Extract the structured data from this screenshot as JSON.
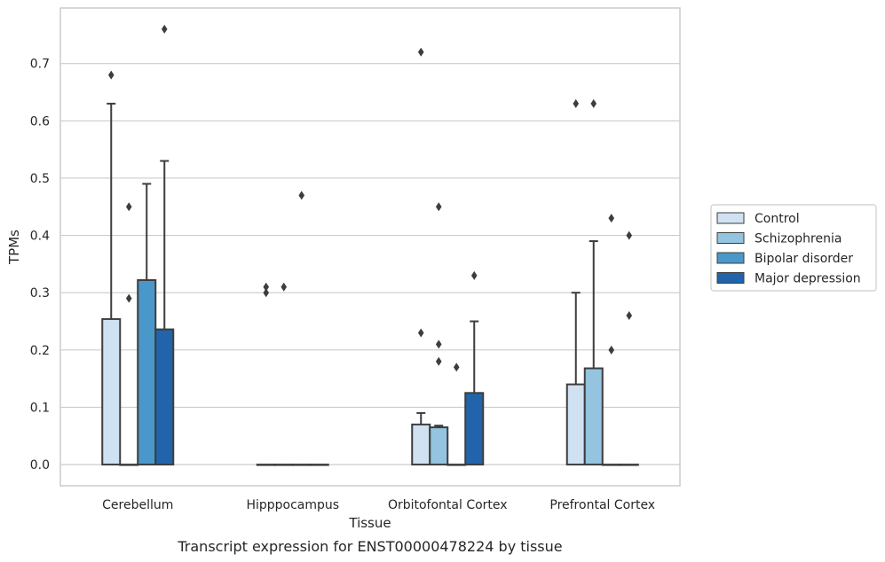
{
  "chart_data": {
    "type": "bar",
    "xlabel": "Tissue",
    "ylabel": "TPMs",
    "caption": "Transcript expression for ENST00000478224 by tissue",
    "categories": [
      "Cerebellum",
      "Hipppocampus",
      "Orbitofontal Cortex",
      "Prefrontal Cortex"
    ],
    "y_ticks": [
      "0.0",
      "0.1",
      "0.2",
      "0.3",
      "0.4",
      "0.5",
      "0.6",
      "0.7"
    ],
    "ylim": [
      -0.037,
      0.797
    ],
    "grid": true,
    "legend_position": "right",
    "series": [
      {
        "name": "Control",
        "color": "#d0e1f2",
        "values": [
          0.254,
          0.0,
          0.07,
          0.14
        ],
        "whisker_high": [
          0.63,
          null,
          0.09,
          0.3
        ],
        "outliers": [
          [
            0.68
          ],
          [
            0.3,
            0.31
          ],
          [
            0.23,
            0.72
          ],
          [
            0.63
          ]
        ]
      },
      {
        "name": "Schizophrenia",
        "color": "#94c4df",
        "values": [
          0.0,
          0.0,
          0.065,
          0.168
        ],
        "whisker_high": [
          null,
          null,
          0.068,
          0.39
        ],
        "outliers": [
          [
            0.29,
            0.45
          ],
          [
            0.31
          ],
          [
            0.18,
            0.21,
            0.45
          ],
          [
            0.63
          ]
        ]
      },
      {
        "name": "Bipolar disorder",
        "color": "#4a98c9",
        "values": [
          0.322,
          0.0,
          0.0,
          0.0
        ],
        "whisker_high": [
          0.49,
          null,
          null,
          null
        ],
        "outliers": [
          [],
          [
            0.47
          ],
          [
            0.17
          ],
          [
            0.2,
            0.43
          ]
        ]
      },
      {
        "name": "Major depression",
        "color": "#2164ab",
        "values": [
          0.236,
          0.0,
          0.125,
          0.0
        ],
        "whisker_high": [
          0.53,
          null,
          0.25,
          null
        ],
        "outliers": [
          [
            0.76
          ],
          [],
          [
            0.33
          ],
          [
            0.26,
            0.4
          ]
        ]
      }
    ]
  }
}
